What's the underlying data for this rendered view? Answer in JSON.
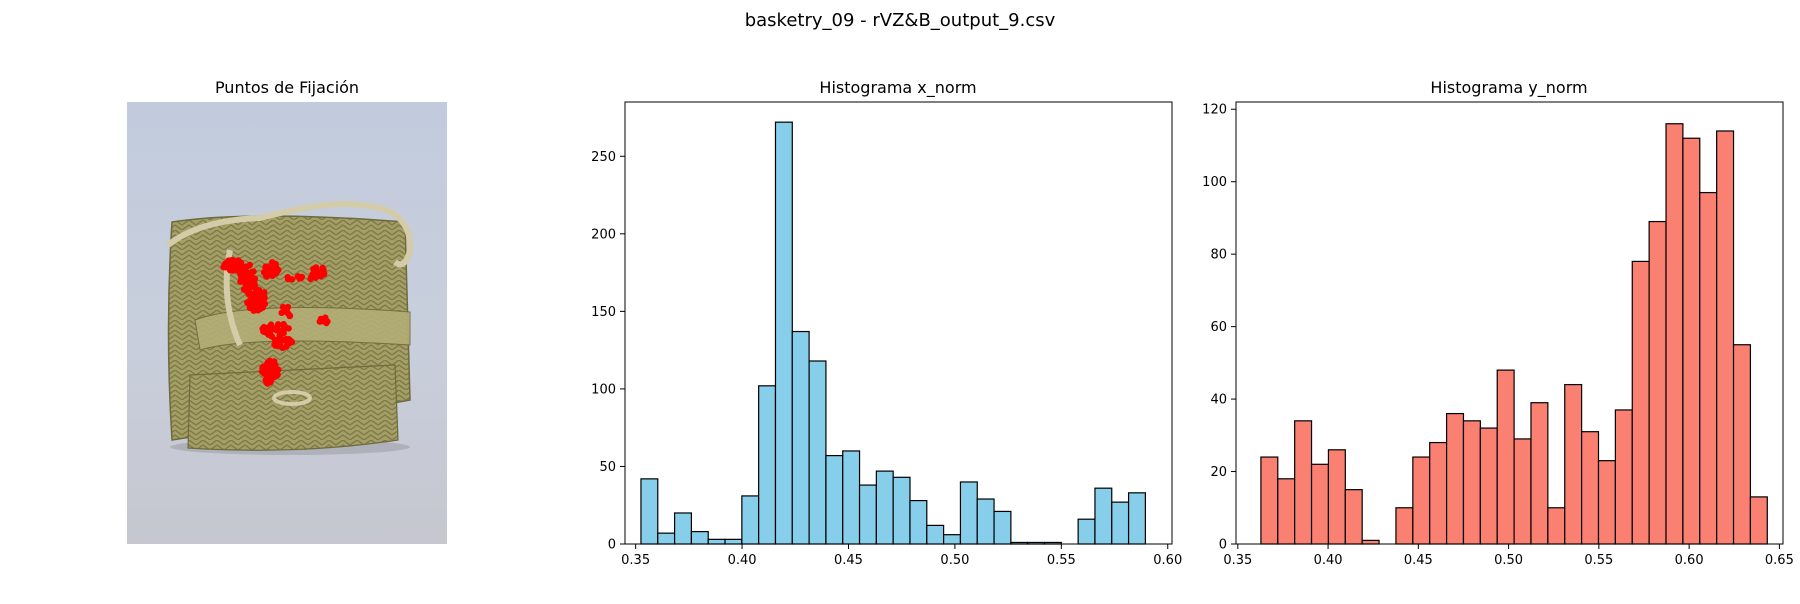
{
  "figure": {
    "suptitle": "basketry_09 - rVZ&B_output_9.csv"
  },
  "image_panel": {
    "title": "Puntos de Fijación",
    "image_kind": "photo of woven esparto basket bag with red fixation points overlay",
    "colors": {
      "background": "#c3cbdb",
      "basket": "#a3a066",
      "rope": "#d2c8a6",
      "fixation": "#ff0000"
    }
  },
  "chart_data": [
    {
      "type": "bar",
      "title": "Histograma x_norm",
      "xlabel": "",
      "ylabel": "",
      "xlim": [
        0.345,
        0.602
      ],
      "ylim": [
        0,
        285
      ],
      "xticks": [
        0.35,
        0.4,
        0.45,
        0.5,
        0.55,
        0.6
      ],
      "xtick_labels": [
        "0.35",
        "0.40",
        "0.45",
        "0.50",
        "0.55",
        "0.60"
      ],
      "yticks": [
        0,
        50,
        100,
        150,
        200,
        250
      ],
      "ytick_labels": [
        "0",
        "50",
        "100",
        "150",
        "200",
        "250"
      ],
      "bin_start": 0.3525,
      "bin_width": 0.0079,
      "values": [
        42,
        7,
        20,
        8,
        3,
        3,
        31,
        102,
        272,
        137,
        118,
        57,
        60,
        38,
        47,
        43,
        28,
        12,
        6,
        40,
        29,
        21,
        1,
        1,
        1,
        0,
        16,
        36,
        27,
        33
      ],
      "color": "#87ceeb",
      "edgecolor": "#000000",
      "grid": false
    },
    {
      "type": "bar",
      "title": "Histograma y_norm",
      "xlabel": "",
      "ylabel": "",
      "xlim": [
        0.349,
        0.652
      ],
      "ylim": [
        0,
        122
      ],
      "xticks": [
        0.35,
        0.4,
        0.45,
        0.5,
        0.55,
        0.6,
        0.65
      ],
      "xtick_labels": [
        "0.35",
        "0.40",
        "0.45",
        "0.50",
        "0.55",
        "0.60",
        "0.65"
      ],
      "yticks": [
        0,
        20,
        40,
        60,
        80,
        100,
        120
      ],
      "ytick_labels": [
        "0",
        "20",
        "40",
        "60",
        "80",
        "100",
        "120"
      ],
      "bin_start": 0.3628,
      "bin_width": 0.00935,
      "values": [
        24,
        18,
        34,
        22,
        26,
        15,
        1,
        0,
        10,
        24,
        28,
        36,
        34,
        32,
        48,
        29,
        39,
        10,
        44,
        31,
        23,
        37,
        78,
        89,
        116,
        112,
        97,
        114,
        55,
        13
      ],
      "color": "#fa8072",
      "edgecolor": "#000000",
      "grid": false
    }
  ]
}
